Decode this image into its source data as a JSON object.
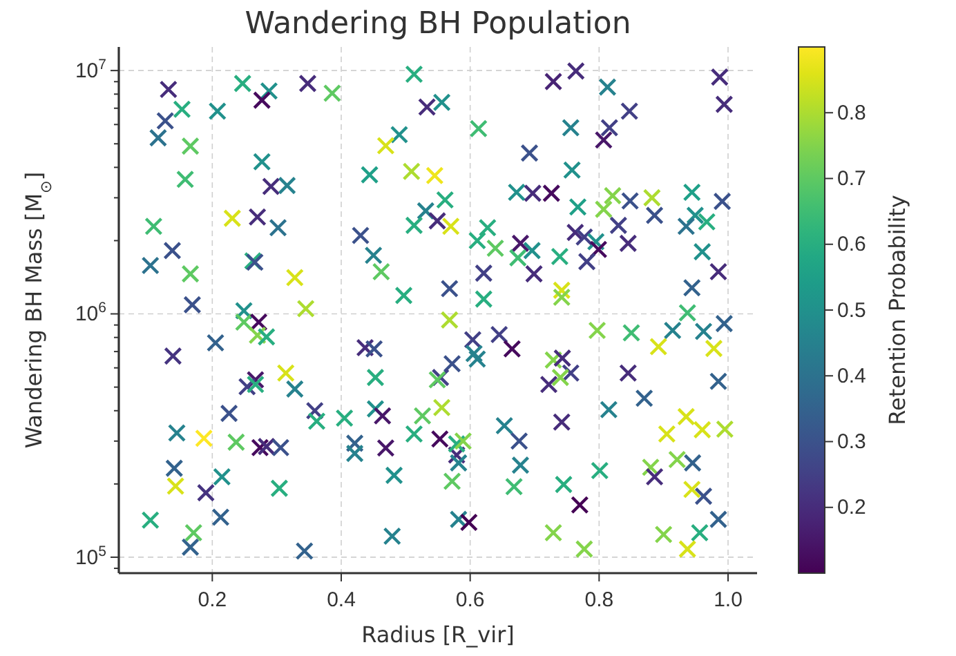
{
  "chart_data": {
    "type": "scatter",
    "title": "Wandering BH Population",
    "xlabel": "Radius [R_vir]",
    "ylabel": "Wandering BH Mass [M$_{⊙}$]",
    "clabel": "Retention Probability",
    "log": "y",
    "grid": true,
    "marker": "cross",
    "xlim": [
      0.055,
      1.045
    ],
    "xticks": [
      0.2,
      0.4,
      0.6,
      0.8,
      {
        "value": 1,
        "label": "1.0"
      }
    ],
    "ylim": [
      86000,
      12500000
    ],
    "yticks": [
      {
        "value": 90000,
        "label": null
      },
      {
        "value": 100000,
        "label": "10$^{5}$"
      },
      {
        "value": 200000,
        "label": null
      },
      {
        "value": 300000,
        "label": null
      },
      {
        "value": 400000,
        "label": null
      },
      {
        "value": 500000,
        "label": null
      },
      {
        "value": 600000,
        "label": null
      },
      {
        "value": 700000,
        "label": null
      },
      {
        "value": 800000,
        "label": null
      },
      {
        "value": 900000,
        "label": null
      },
      {
        "value": 1000000,
        "label": "10$^{6}$"
      },
      {
        "value": 2000000,
        "label": null
      },
      {
        "value": 3000000,
        "label": null
      },
      {
        "value": 4000000,
        "label": null
      },
      {
        "value": 5000000,
        "label": null
      },
      {
        "value": 6000000,
        "label": null
      },
      {
        "value": 7000000,
        "label": null
      },
      {
        "value": 8000000,
        "label": null
      },
      {
        "value": 9000000,
        "label": null
      },
      {
        "value": 10000000,
        "label": "10$^{7}$"
      }
    ],
    "clim": [
      0.1,
      0.9
    ],
    "cticks": [
      0.2,
      0.3,
      0.4,
      0.5,
      0.6,
      0.7,
      0.8
    ],
    "x": [
      0.132,
      0.153,
      0.127,
      0.116,
      0.166,
      0.208,
      0.247,
      0.288,
      0.277,
      0.348,
      0.277,
      0.291,
      0.316,
      0.158,
      0.109,
      0.231,
      0.27,
      0.302,
      0.138,
      0.104,
      0.263,
      0.266,
      0.166,
      0.328,
      0.169,
      0.249,
      0.345,
      0.386,
      0.513,
      0.533,
      0.556,
      0.49,
      0.469,
      0.613,
      0.692,
      0.444,
      0.509,
      0.545,
      0.561,
      0.531,
      0.513,
      0.549,
      0.57,
      0.672,
      0.697,
      0.43,
      0.45,
      0.462,
      0.497,
      0.568,
      0.627,
      0.611,
      0.639,
      0.678,
      0.674,
      0.696,
      0.699,
      0.621,
      0.621,
      0.729,
      0.764,
      0.813,
      0.847,
      0.756,
      0.816,
      0.807,
      0.987,
      0.994,
      0.758,
      0.726,
      0.767,
      0.807,
      0.821,
      0.848,
      0.882,
      0.886,
      0.83,
      0.845,
      0.944,
      0.991,
      0.949,
      0.935,
      0.967,
      0.96,
      0.985,
      0.944,
      0.937,
      0.763,
      0.777,
      0.795,
      0.799,
      0.781,
      0.739,
      0.742,
      0.742,
      0.249,
      0.272,
      0.27,
      0.284,
      0.205,
      0.139,
      0.314,
      0.267,
      0.254,
      0.267,
      0.328,
      0.359,
      0.362,
      0.226,
      0.145,
      0.187,
      0.237,
      0.274,
      0.284,
      0.306,
      0.141,
      0.143,
      0.215,
      0.19,
      0.304,
      0.104,
      0.213,
      0.171,
      0.166,
      0.343,
      0.568,
      0.437,
      0.451,
      0.604,
      0.606,
      0.611,
      0.645,
      0.665,
      0.453,
      0.572,
      0.554,
      0.549,
      0.405,
      0.453,
      0.464,
      0.526,
      0.556,
      0.513,
      0.421,
      0.421,
      0.469,
      0.482,
      0.553,
      0.579,
      0.582,
      0.579,
      0.589,
      0.572,
      0.653,
      0.676,
      0.678,
      0.668,
      0.582,
      0.598,
      0.479,
      0.797,
      0.85,
      0.892,
      0.914,
      0.962,
      0.994,
      0.978,
      0.729,
      0.743,
      0.756,
      0.74,
      0.722,
      0.845,
      0.985,
      0.87,
      0.815,
      0.742,
      0.935,
      0.905,
      0.96,
      0.995,
      0.921,
      0.945,
      0.88,
      0.886,
      0.801,
      0.745,
      0.77,
      0.944,
      0.962,
      0.985,
      0.729,
      0.777,
      0.9,
      0.956,
      0.937
    ],
    "values": [
      8360000,
      6930000,
      6210000,
      5290000,
      4890000,
      6810000,
      8850000,
      8240000,
      7550000,
      8850000,
      4220000,
      3340000,
      3370000,
      3570000,
      2290000,
      2470000,
      2500000,
      2260000,
      1820000,
      1580000,
      1650000,
      1630000,
      1460000,
      1410000,
      1090000,
      1030000,
      1050000,
      8070000,
      9660000,
      7080000,
      7400000,
      5450000,
      4910000,
      5770000,
      4580000,
      3730000,
      3850000,
      3700000,
      2940000,
      2650000,
      2310000,
      2410000,
      2290000,
      3160000,
      3130000,
      2100000,
      1740000,
      1490000,
      1190000,
      1270000,
      2260000,
      2000000,
      1860000,
      1950000,
      1700000,
      1820000,
      1460000,
      1470000,
      1150000,
      9010000,
      9950000,
      8550000,
      6810000,
      5820000,
      5820000,
      5180000,
      9400000,
      7260000,
      3900000,
      3130000,
      2750000,
      2690000,
      3060000,
      2910000,
      3000000,
      2540000,
      2310000,
      1950000,
      3160000,
      2900000,
      2540000,
      2290000,
      2390000,
      1800000,
      1490000,
      1280000,
      1010000,
      2160000,
      2070000,
      1980000,
      1840000,
      1640000,
      1720000,
      1250000,
      1170000,
      925000,
      925000,
      817000,
      804000,
      760000,
      671000,
      571000,
      536000,
      502000,
      513000,
      491000,
      400000,
      362000,
      390000,
      324000,
      308000,
      297000,
      282000,
      285000,
      282000,
      232000,
      196000,
      214000,
      184000,
      192000,
      142000,
      146000,
      126000,
      110000,
      106000,
      944000,
      726000,
      718000,
      783000,
      687000,
      652000,
      822000,
      718000,
      548000,
      624000,
      548000,
      536000,
      373000,
      407000,
      381000,
      381000,
      412000,
      321000,
      294000,
      267000,
      281000,
      217000,
      306000,
      263000,
      244000,
      292000,
      300000,
      205000,
      347000,
      300000,
      239000,
      195000,
      143000,
      139000,
      122000,
      855000,
      836000,
      733000,
      855000,
      847000,
      912000,
      721000,
      646000,
      658000,
      571000,
      548000,
      513000,
      571000,
      528000,
      450000,
      404000,
      359000,
      378000,
      321000,
      334000,
      336000,
      252000,
      244000,
      234000,
      214000,
      227000,
      199000,
      164000,
      190000,
      178000,
      143000,
      126000,
      108000,
      124000,
      126000,
      108000
    ],
    "cvalues": [
      0.2,
      0.6,
      0.3,
      0.4,
      0.7,
      0.5,
      0.6,
      0.5,
      0.12,
      0.2,
      0.5,
      0.2,
      0.45,
      0.65,
      0.65,
      0.85,
      0.2,
      0.4,
      0.3,
      0.4,
      0.6,
      0.3,
      0.7,
      0.85,
      0.3,
      0.5,
      0.8,
      0.7,
      0.6,
      0.2,
      0.5,
      0.5,
      0.85,
      0.65,
      0.3,
      0.55,
      0.8,
      0.88,
      0.6,
      0.45,
      0.6,
      0.2,
      0.85,
      0.5,
      0.2,
      0.3,
      0.45,
      0.7,
      0.6,
      0.3,
      0.6,
      0.6,
      0.7,
      0.15,
      0.65,
      0.5,
      0.2,
      0.25,
      0.6,
      0.18,
      0.2,
      0.45,
      0.25,
      0.45,
      0.25,
      0.15,
      0.2,
      0.2,
      0.5,
      0.12,
      0.55,
      0.75,
      0.75,
      0.3,
      0.8,
      0.3,
      0.25,
      0.2,
      0.55,
      0.3,
      0.5,
      0.4,
      0.6,
      0.5,
      0.2,
      0.35,
      0.65,
      0.2,
      0.25,
      0.5,
      0.12,
      0.25,
      0.6,
      0.85,
      0.75,
      0.7,
      0.12,
      0.75,
      0.6,
      0.35,
      0.22,
      0.85,
      0.15,
      0.25,
      0.6,
      0.45,
      0.25,
      0.6,
      0.3,
      0.45,
      0.9,
      0.7,
      0.12,
      0.2,
      0.3,
      0.35,
      0.85,
      0.5,
      0.22,
      0.6,
      0.6,
      0.35,
      0.7,
      0.35,
      0.35,
      0.8,
      0.2,
      0.3,
      0.25,
      0.45,
      0.45,
      0.25,
      0.12,
      0.6,
      0.3,
      0.25,
      0.7,
      0.6,
      0.5,
      0.15,
      0.7,
      0.8,
      0.6,
      0.35,
      0.45,
      0.15,
      0.5,
      0.12,
      0.2,
      0.45,
      0.6,
      0.75,
      0.7,
      0.45,
      0.3,
      0.45,
      0.65,
      0.45,
      0.1,
      0.45,
      0.75,
      0.65,
      0.85,
      0.45,
      0.45,
      0.35,
      0.85,
      0.75,
      0.2,
      0.25,
      0.75,
      0.2,
      0.2,
      0.35,
      0.35,
      0.45,
      0.2,
      0.85,
      0.85,
      0.85,
      0.8,
      0.75,
      0.35,
      0.75,
      0.2,
      0.6,
      0.6,
      0.1,
      0.85,
      0.3,
      0.35,
      0.75,
      0.75,
      0.75,
      0.6,
      0.85
    ]
  }
}
